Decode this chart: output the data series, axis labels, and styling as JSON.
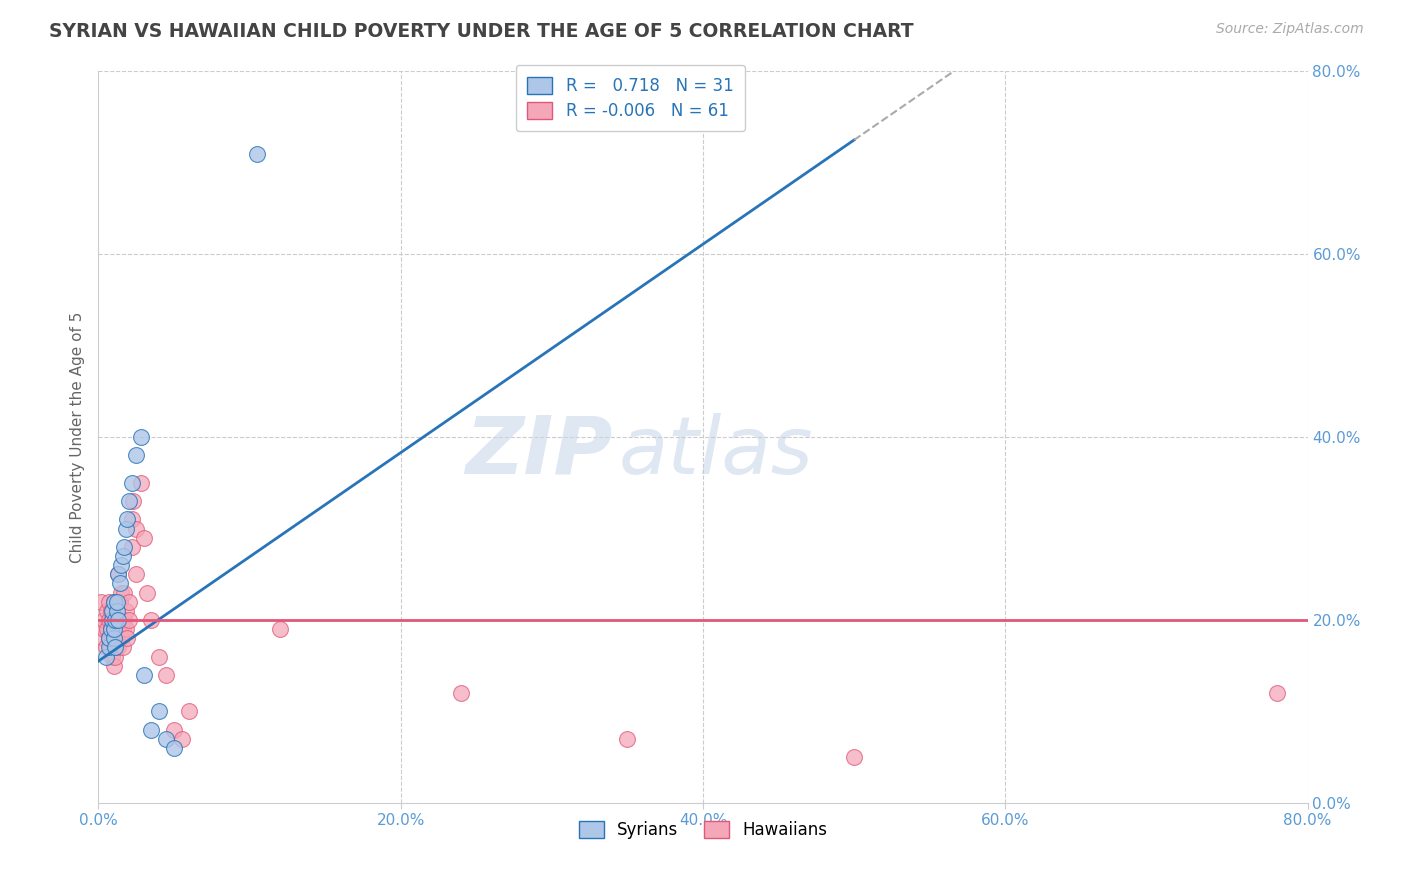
{
  "title": "SYRIAN VS HAWAIIAN CHILD POVERTY UNDER THE AGE OF 5 CORRELATION CHART",
  "source": "Source: ZipAtlas.com",
  "ylabel": "Child Poverty Under the Age of 5",
  "xlim": [
    0.0,
    0.8
  ],
  "ylim": [
    0.0,
    0.8
  ],
  "watermark_zip": "ZIP",
  "watermark_atlas": "atlas",
  "legend1_label": "Syrians",
  "legend2_label": "Hawaiians",
  "R_syrian": 0.718,
  "N_syrian": 31,
  "R_hawaiian": -0.006,
  "N_hawaiian": 61,
  "syrian_color": "#aec6e8",
  "hawaiian_color": "#f4a7b9",
  "syrian_line_color": "#2874b8",
  "hawaiian_line_color": "#e05878",
  "grid_color": "#cccccc",
  "background_color": "#ffffff",
  "title_color": "#444444",
  "tick_color": "#5b9bd5",
  "syrian_scatter": [
    [
      0.005,
      0.16
    ],
    [
      0.007,
      0.17
    ],
    [
      0.007,
      0.18
    ],
    [
      0.008,
      0.19
    ],
    [
      0.009,
      0.2
    ],
    [
      0.009,
      0.21
    ],
    [
      0.01,
      0.18
    ],
    [
      0.01,
      0.19
    ],
    [
      0.01,
      0.22
    ],
    [
      0.011,
      0.17
    ],
    [
      0.011,
      0.2
    ],
    [
      0.012,
      0.21
    ],
    [
      0.012,
      0.22
    ],
    [
      0.013,
      0.2
    ],
    [
      0.013,
      0.25
    ],
    [
      0.014,
      0.24
    ],
    [
      0.015,
      0.26
    ],
    [
      0.016,
      0.27
    ],
    [
      0.017,
      0.28
    ],
    [
      0.018,
      0.3
    ],
    [
      0.019,
      0.31
    ],
    [
      0.02,
      0.33
    ],
    [
      0.022,
      0.35
    ],
    [
      0.025,
      0.38
    ],
    [
      0.028,
      0.4
    ],
    [
      0.03,
      0.14
    ],
    [
      0.035,
      0.08
    ],
    [
      0.04,
      0.1
    ],
    [
      0.045,
      0.07
    ],
    [
      0.05,
      0.06
    ],
    [
      0.105,
      0.71
    ]
  ],
  "hawaiian_scatter": [
    [
      0.002,
      0.22
    ],
    [
      0.003,
      0.18
    ],
    [
      0.004,
      0.19
    ],
    [
      0.004,
      0.2
    ],
    [
      0.005,
      0.17
    ],
    [
      0.006,
      0.19
    ],
    [
      0.006,
      0.21
    ],
    [
      0.007,
      0.18
    ],
    [
      0.007,
      0.2
    ],
    [
      0.007,
      0.22
    ],
    [
      0.008,
      0.17
    ],
    [
      0.008,
      0.19
    ],
    [
      0.008,
      0.21
    ],
    [
      0.009,
      0.16
    ],
    [
      0.009,
      0.18
    ],
    [
      0.009,
      0.2
    ],
    [
      0.01,
      0.15
    ],
    [
      0.01,
      0.17
    ],
    [
      0.01,
      0.19
    ],
    [
      0.01,
      0.22
    ],
    [
      0.011,
      0.16
    ],
    [
      0.011,
      0.19
    ],
    [
      0.012,
      0.18
    ],
    [
      0.012,
      0.2
    ],
    [
      0.013,
      0.17
    ],
    [
      0.013,
      0.2
    ],
    [
      0.013,
      0.22
    ],
    [
      0.013,
      0.25
    ],
    [
      0.014,
      0.19
    ],
    [
      0.014,
      0.22
    ],
    [
      0.015,
      0.18
    ],
    [
      0.015,
      0.2
    ],
    [
      0.015,
      0.23
    ],
    [
      0.016,
      0.17
    ],
    [
      0.016,
      0.19
    ],
    [
      0.017,
      0.2
    ],
    [
      0.017,
      0.23
    ],
    [
      0.018,
      0.19
    ],
    [
      0.018,
      0.21
    ],
    [
      0.019,
      0.18
    ],
    [
      0.02,
      0.2
    ],
    [
      0.02,
      0.22
    ],
    [
      0.022,
      0.28
    ],
    [
      0.022,
      0.31
    ],
    [
      0.023,
      0.33
    ],
    [
      0.025,
      0.25
    ],
    [
      0.025,
      0.3
    ],
    [
      0.028,
      0.35
    ],
    [
      0.03,
      0.29
    ],
    [
      0.032,
      0.23
    ],
    [
      0.035,
      0.2
    ],
    [
      0.04,
      0.16
    ],
    [
      0.045,
      0.14
    ],
    [
      0.05,
      0.08
    ],
    [
      0.055,
      0.07
    ],
    [
      0.06,
      0.1
    ],
    [
      0.12,
      0.19
    ],
    [
      0.24,
      0.12
    ],
    [
      0.35,
      0.07
    ],
    [
      0.5,
      0.05
    ],
    [
      0.78,
      0.12
    ]
  ]
}
